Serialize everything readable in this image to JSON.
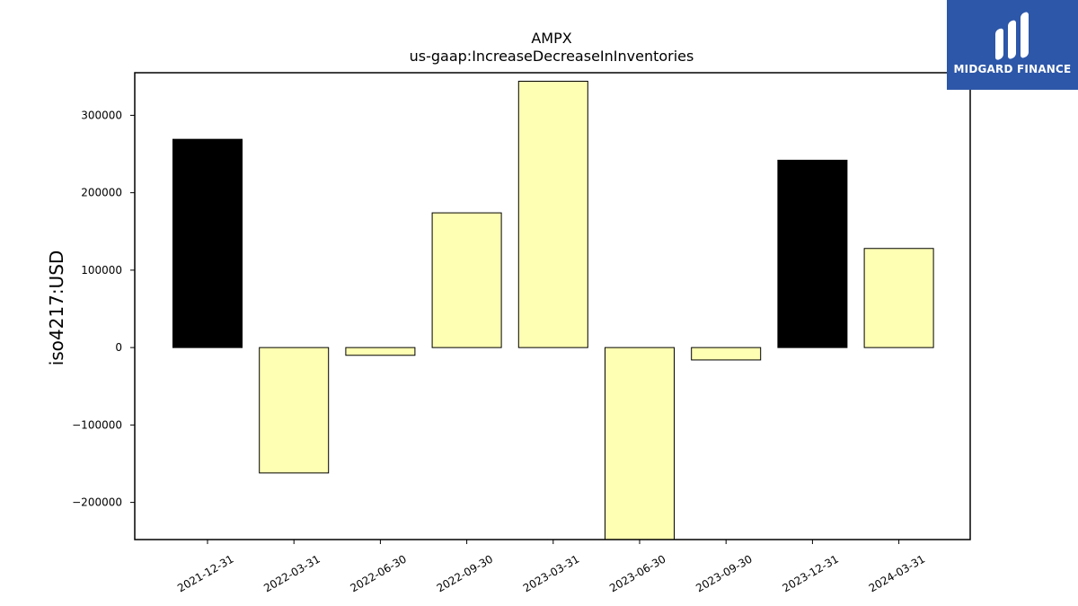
{
  "chart_data": {
    "type": "bar",
    "title": "AMPX",
    "subtitle": "us-gaap:IncreaseDecreaseInInventories",
    "xlabel": "",
    "ylabel": "iso4217:USD",
    "categories": [
      "2021-12-31",
      "2022-03-31",
      "2022-06-30",
      "2022-09-30",
      "2023-03-31",
      "2023-06-30",
      "2023-09-30",
      "2023-12-31",
      "2024-03-31"
    ],
    "values": [
      269000,
      -162000,
      -10000,
      174000,
      344000,
      -248000,
      -16000,
      242000,
      128000
    ],
    "bar_colors": [
      "#000000",
      "#ffffb3",
      "#ffffb3",
      "#ffffb3",
      "#ffffb3",
      "#ffffb3",
      "#ffffb3",
      "#000000",
      "#ffffb3"
    ],
    "ylim": [
      -248000,
      355000
    ],
    "yticks": [
      -200000,
      -100000,
      0,
      100000,
      200000,
      300000
    ],
    "grid": false,
    "legend": "none"
  },
  "brand": {
    "name": "MIDGARD FINANCE",
    "background": "#2d57a8"
  }
}
